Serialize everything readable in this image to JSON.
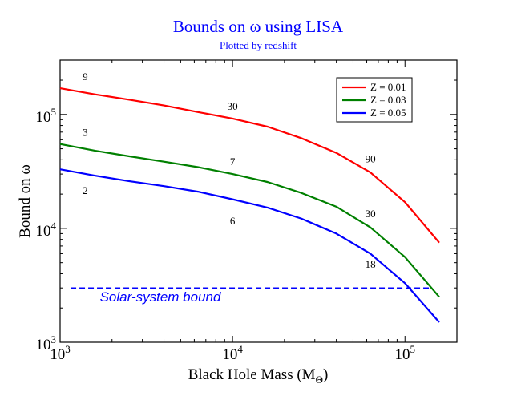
{
  "chart_data": {
    "type": "line",
    "title": "Bounds on ω  using LISA",
    "subtitle": "Plotted by redshift",
    "xlabel": "Black Hole Mass (M",
    "xlabel_sub": "Θ",
    "xlabel_close": ")",
    "ylabel": "Bound on ω",
    "xscale": "log",
    "yscale": "log",
    "xlim": [
      1000,
      200000
    ],
    "ylim": [
      1000,
      300000
    ],
    "grid": false,
    "legend_position": "top-right",
    "x_ticks": [
      {
        "value": 1000,
        "base": "10",
        "exp": "3"
      },
      {
        "value": 10000,
        "base": "10",
        "exp": "4"
      },
      {
        "value": 100000,
        "base": "10",
        "exp": "5"
      }
    ],
    "y_ticks": [
      {
        "value": 1000,
        "base": "10",
        "exp": "3"
      },
      {
        "value": 10000,
        "base": "10",
        "exp": "4"
      },
      {
        "value": 100000,
        "base": "10",
        "exp": "5"
      }
    ],
    "series": [
      {
        "name": "Z = 0.01",
        "color": "#ff0000",
        "x": [
          1000,
          1600,
          2500,
          4000,
          6300,
          10000,
          16000,
          25000,
          40000,
          63000,
          100000,
          158000
        ],
        "y": [
          170000,
          150000,
          135000,
          120000,
          105000,
          92000,
          78000,
          62000,
          46000,
          31000,
          17000,
          7500
        ]
      },
      {
        "name": "Z = 0.03",
        "color": "#008000",
        "x": [
          1000,
          1600,
          2500,
          4000,
          6300,
          10000,
          16000,
          25000,
          40000,
          63000,
          100000,
          158000
        ],
        "y": [
          55000,
          48000,
          43000,
          38500,
          34500,
          30000,
          25500,
          20500,
          15500,
          10200,
          5600,
          2500
        ]
      },
      {
        "name": "Z = 0.05",
        "color": "#0000ff",
        "x": [
          1000,
          1600,
          2500,
          4000,
          6300,
          10000,
          16000,
          25000,
          40000,
          63000,
          100000,
          158000
        ],
        "y": [
          33000,
          29000,
          26000,
          23500,
          21000,
          18000,
          15200,
          12200,
          9000,
          6000,
          3300,
          1500
        ]
      }
    ],
    "reference_line": {
      "label": "Solar-system bound",
      "y": 3000,
      "x_start": 1150,
      "x_end": 140000,
      "color": "#0000ff",
      "style": "dashed"
    },
    "annotations": [
      {
        "text": "9",
        "x": 1400,
        "y": 200000
      },
      {
        "text": "30",
        "x": 10000,
        "y": 110000
      },
      {
        "text": "90",
        "x": 63000,
        "y": 38000
      },
      {
        "text": "3",
        "x": 1400,
        "y": 65000
      },
      {
        "text": "7",
        "x": 10000,
        "y": 36000
      },
      {
        "text": "30",
        "x": 63000,
        "y": 12500
      },
      {
        "text": "2",
        "x": 1400,
        "y": 20000
      },
      {
        "text": "6",
        "x": 10000,
        "y": 10800
      },
      {
        "text": "18",
        "x": 63000,
        "y": 4500
      }
    ]
  }
}
